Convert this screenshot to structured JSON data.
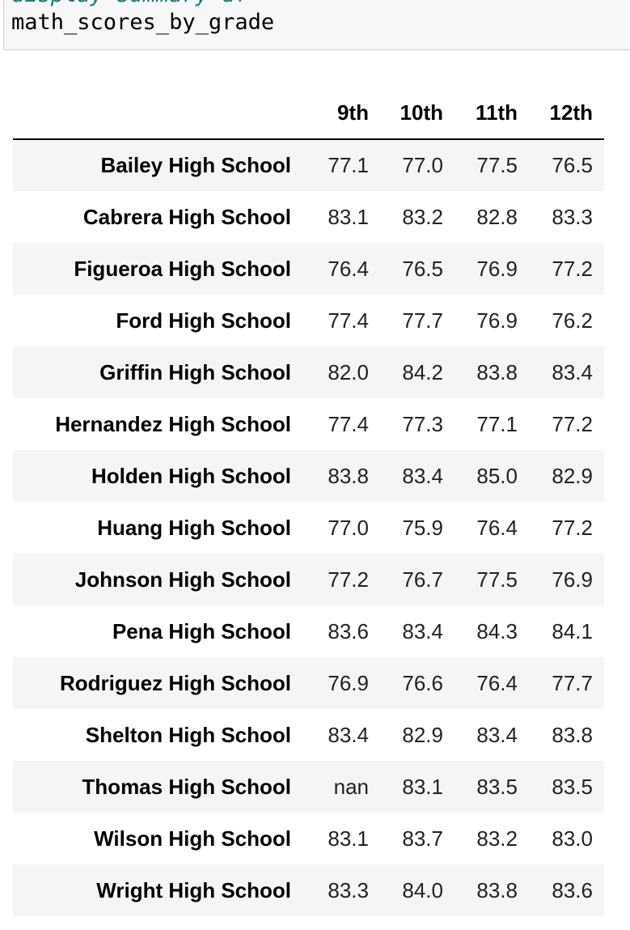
{
  "code_cell": {
    "cut_line": "display summary df",
    "variable_line": "math_scores_by_grade"
  },
  "table": {
    "index_header": "",
    "columns": [
      "9th",
      "10th",
      "11th",
      "12th"
    ],
    "rows": [
      {
        "school": "Bailey High School",
        "values": [
          "77.1",
          "77.0",
          "77.5",
          "76.5"
        ]
      },
      {
        "school": "Cabrera High School",
        "values": [
          "83.1",
          "83.2",
          "82.8",
          "83.3"
        ]
      },
      {
        "school": "Figueroa High School",
        "values": [
          "76.4",
          "76.5",
          "76.9",
          "77.2"
        ]
      },
      {
        "school": "Ford High School",
        "values": [
          "77.4",
          "77.7",
          "76.9",
          "76.2"
        ]
      },
      {
        "school": "Griffin High School",
        "values": [
          "82.0",
          "84.2",
          "83.8",
          "83.4"
        ]
      },
      {
        "school": "Hernandez High School",
        "values": [
          "77.4",
          "77.3",
          "77.1",
          "77.2"
        ]
      },
      {
        "school": "Holden High School",
        "values": [
          "83.8",
          "83.4",
          "85.0",
          "82.9"
        ]
      },
      {
        "school": "Huang High School",
        "values": [
          "77.0",
          "75.9",
          "76.4",
          "77.2"
        ]
      },
      {
        "school": "Johnson High School",
        "values": [
          "77.2",
          "76.7",
          "77.5",
          "76.9"
        ]
      },
      {
        "school": "Pena High School",
        "values": [
          "83.6",
          "83.4",
          "84.3",
          "84.1"
        ]
      },
      {
        "school": "Rodriguez High School",
        "values": [
          "76.9",
          "76.6",
          "76.4",
          "77.7"
        ]
      },
      {
        "school": "Shelton High School",
        "values": [
          "83.4",
          "82.9",
          "83.4",
          "83.8"
        ]
      },
      {
        "school": "Thomas High School",
        "values": [
          "nan",
          "83.1",
          "83.5",
          "83.5"
        ]
      },
      {
        "school": "Wilson High School",
        "values": [
          "83.1",
          "83.7",
          "83.2",
          "83.0"
        ]
      },
      {
        "school": "Wright High School",
        "values": [
          "83.3",
          "84.0",
          "83.8",
          "83.6"
        ]
      }
    ]
  }
}
